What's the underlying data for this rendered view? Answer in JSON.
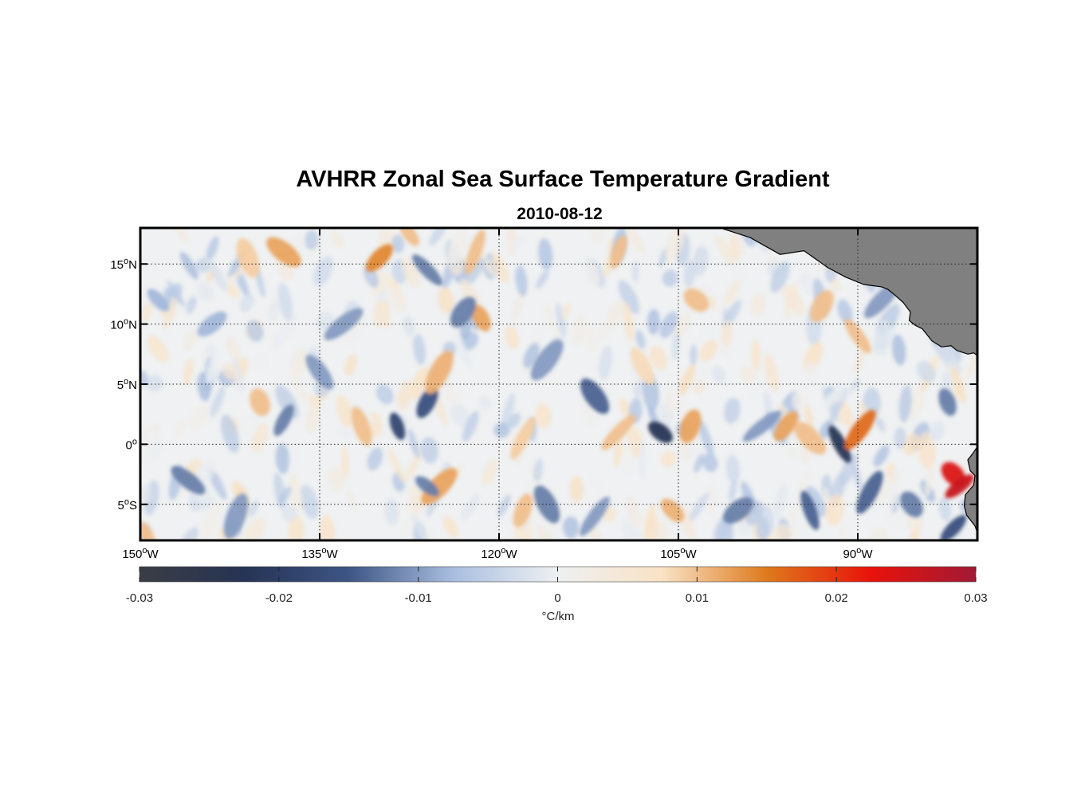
{
  "chart_data": {
    "type": "heatmap",
    "title": "AVHRR Zonal Sea Surface Temperature Gradient",
    "subtitle": "2010-08-12",
    "x_ticks": [
      "150",
      "135",
      "120",
      "105",
      "90"
    ],
    "x_tick_suffix": "W",
    "y_ticks": [
      {
        "value": 15,
        "num": "15",
        "hem": "N"
      },
      {
        "value": 10,
        "num": "10",
        "hem": "N"
      },
      {
        "value": 5,
        "num": "5",
        "hem": "N"
      },
      {
        "value": 0,
        "num": "0",
        "hem": ""
      },
      {
        "value": -5,
        "num": "5",
        "hem": "S"
      }
    ],
    "degree_symbol": "o",
    "xlim": [
      -150,
      -80
    ],
    "ylim": [
      -8,
      18
    ],
    "grid": true,
    "land_color": "#808080",
    "colorbar": {
      "ticks": [
        "-0.03",
        "-0.02",
        "-0.01",
        "0",
        "0.01",
        "0.02",
        "0.03"
      ],
      "range": [
        -0.03,
        0.03
      ],
      "label": "°C/km",
      "colors": [
        "#3a3d44",
        "#263354",
        "#3d5585",
        "#a9bedf",
        "#eef0f2",
        "#f9e2c5",
        "#de7a1c",
        "#e8120b",
        "#a11a35"
      ]
    },
    "features": [
      {
        "lon": -128.5,
        "lat": 1.5,
        "value": -0.018
      },
      {
        "lon": -126.0,
        "lat": 3.5,
        "value": -0.016
      },
      {
        "lon": -112.0,
        "lat": 4.0,
        "value": -0.014
      },
      {
        "lon": -110.0,
        "lat": 1.0,
        "value": 0.01
      },
      {
        "lon": -106.5,
        "lat": 1.0,
        "value": -0.022
      },
      {
        "lon": -104.0,
        "lat": 1.5,
        "value": 0.012
      },
      {
        "lon": -91.5,
        "lat": 0.0,
        "value": -0.022
      },
      {
        "lon": -89.8,
        "lat": 1.2,
        "value": 0.016
      },
      {
        "lon": -82.0,
        "lat": -2.5,
        "value": 0.024
      },
      {
        "lon": -81.5,
        "lat": -3.5,
        "value": 0.026
      },
      {
        "lon": -131.5,
        "lat": 1.5,
        "value": 0.01
      },
      {
        "lon": -125.0,
        "lat": 6.0,
        "value": 0.011
      },
      {
        "lon": -127.5,
        "lat": 17.5,
        "value": 0.01
      },
      {
        "lon": -130.0,
        "lat": 15.5,
        "value": 0.014
      },
      {
        "lon": -138.0,
        "lat": 16.0,
        "value": 0.012
      },
      {
        "lon": -122.0,
        "lat": 16.0,
        "value": 0.01
      },
      {
        "lon": -121.5,
        "lat": 10.5,
        "value": 0.012
      },
      {
        "lon": -123.0,
        "lat": 11.0,
        "value": -0.012
      },
      {
        "lon": -126.0,
        "lat": 14.5,
        "value": -0.012
      },
      {
        "lon": -133.0,
        "lat": 10.0,
        "value": -0.01
      },
      {
        "lon": -140.0,
        "lat": 3.5,
        "value": 0.01
      },
      {
        "lon": -138.0,
        "lat": 2.0,
        "value": -0.012
      },
      {
        "lon": -135.0,
        "lat": 6.0,
        "value": -0.01
      },
      {
        "lon": -125.0,
        "lat": -3.5,
        "value": 0.012
      },
      {
        "lon": -126.0,
        "lat": -3.5,
        "value": -0.012
      },
      {
        "lon": -118.0,
        "lat": -5.5,
        "value": 0.01
      },
      {
        "lon": -116.0,
        "lat": -5.0,
        "value": -0.012
      },
      {
        "lon": -112.0,
        "lat": -6.0,
        "value": -0.01
      },
      {
        "lon": -105.5,
        "lat": -5.5,
        "value": 0.011
      },
      {
        "lon": -100.0,
        "lat": -5.5,
        "value": -0.012
      },
      {
        "lon": -94.0,
        "lat": -5.5,
        "value": -0.014
      },
      {
        "lon": -89.0,
        "lat": -4.0,
        "value": -0.014
      },
      {
        "lon": -85.5,
        "lat": -5.0,
        "value": -0.012
      },
      {
        "lon": -82.0,
        "lat": -7.0,
        "value": -0.016
      },
      {
        "lon": -146.0,
        "lat": -3.0,
        "value": -0.012
      },
      {
        "lon": -142.0,
        "lat": -6.0,
        "value": -0.01
      },
      {
        "lon": -149.5,
        "lat": -7.5,
        "value": 0.01
      },
      {
        "lon": -96.0,
        "lat": 1.5,
        "value": 0.012
      },
      {
        "lon": -94.0,
        "lat": 0.5,
        "value": 0.01
      },
      {
        "lon": -98.0,
        "lat": 1.5,
        "value": -0.01
      },
      {
        "lon": -82.5,
        "lat": 3.5,
        "value": -0.012
      },
      {
        "lon": -93.0,
        "lat": 11.5,
        "value": 0.01
      },
      {
        "lon": -90.0,
        "lat": 9.0,
        "value": 0.01
      },
      {
        "lon": -88.0,
        "lat": 12.0,
        "value": -0.01
      },
      {
        "lon": -103.5,
        "lat": 12.0,
        "value": 0.01
      },
      {
        "lon": -110.0,
        "lat": 16.0,
        "value": 0.01
      },
      {
        "lon": -108.0,
        "lat": 6.5,
        "value": 0.008
      },
      {
        "lon": -116.0,
        "lat": 7.0,
        "value": -0.01
      },
      {
        "lon": -148.5,
        "lat": 12.0,
        "value": -0.008
      },
      {
        "lon": -144.0,
        "lat": 10.0,
        "value": -0.008
      },
      {
        "lon": -141.0,
        "lat": 15.5,
        "value": 0.009
      },
      {
        "lon": -118.0,
        "lat": 0.5,
        "value": 0.009
      }
    ]
  }
}
